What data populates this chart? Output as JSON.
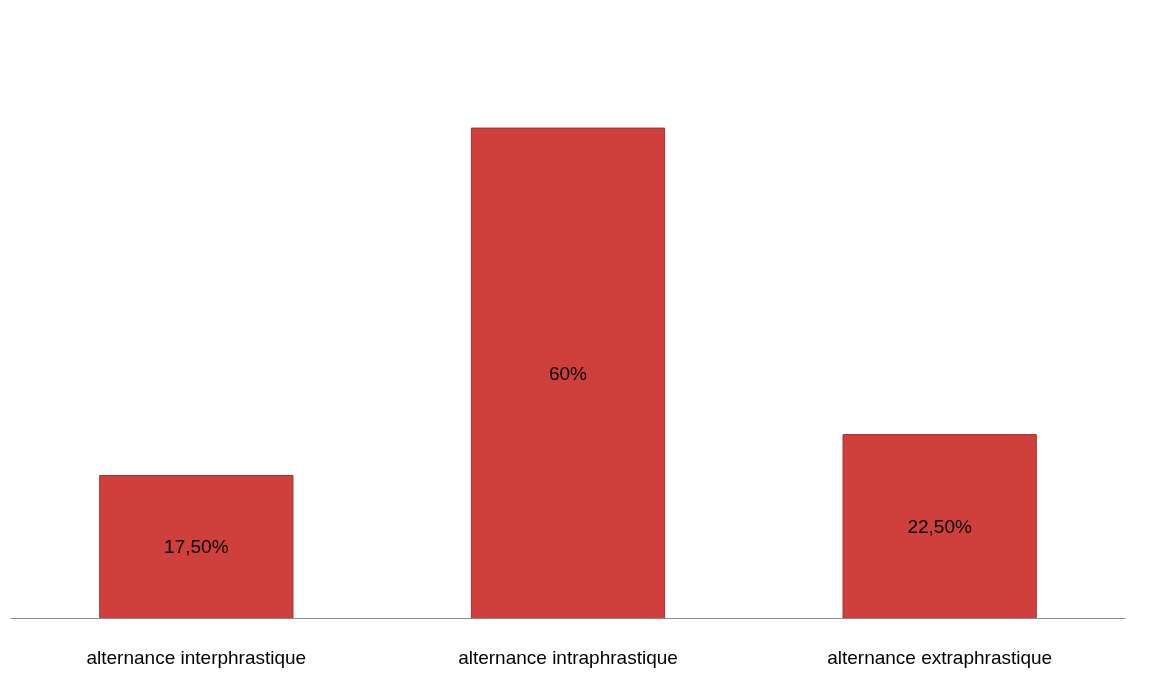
{
  "chart_data": {
    "type": "bar",
    "categories": [
      "alternance interphrastique",
      "alternance intraphrastique",
      "alternance extraphrastique"
    ],
    "values": [
      17.5,
      60,
      22.5
    ],
    "value_labels": [
      "17,50%",
      "60%",
      "22,50%"
    ],
    "color": "#cf403c"
  }
}
